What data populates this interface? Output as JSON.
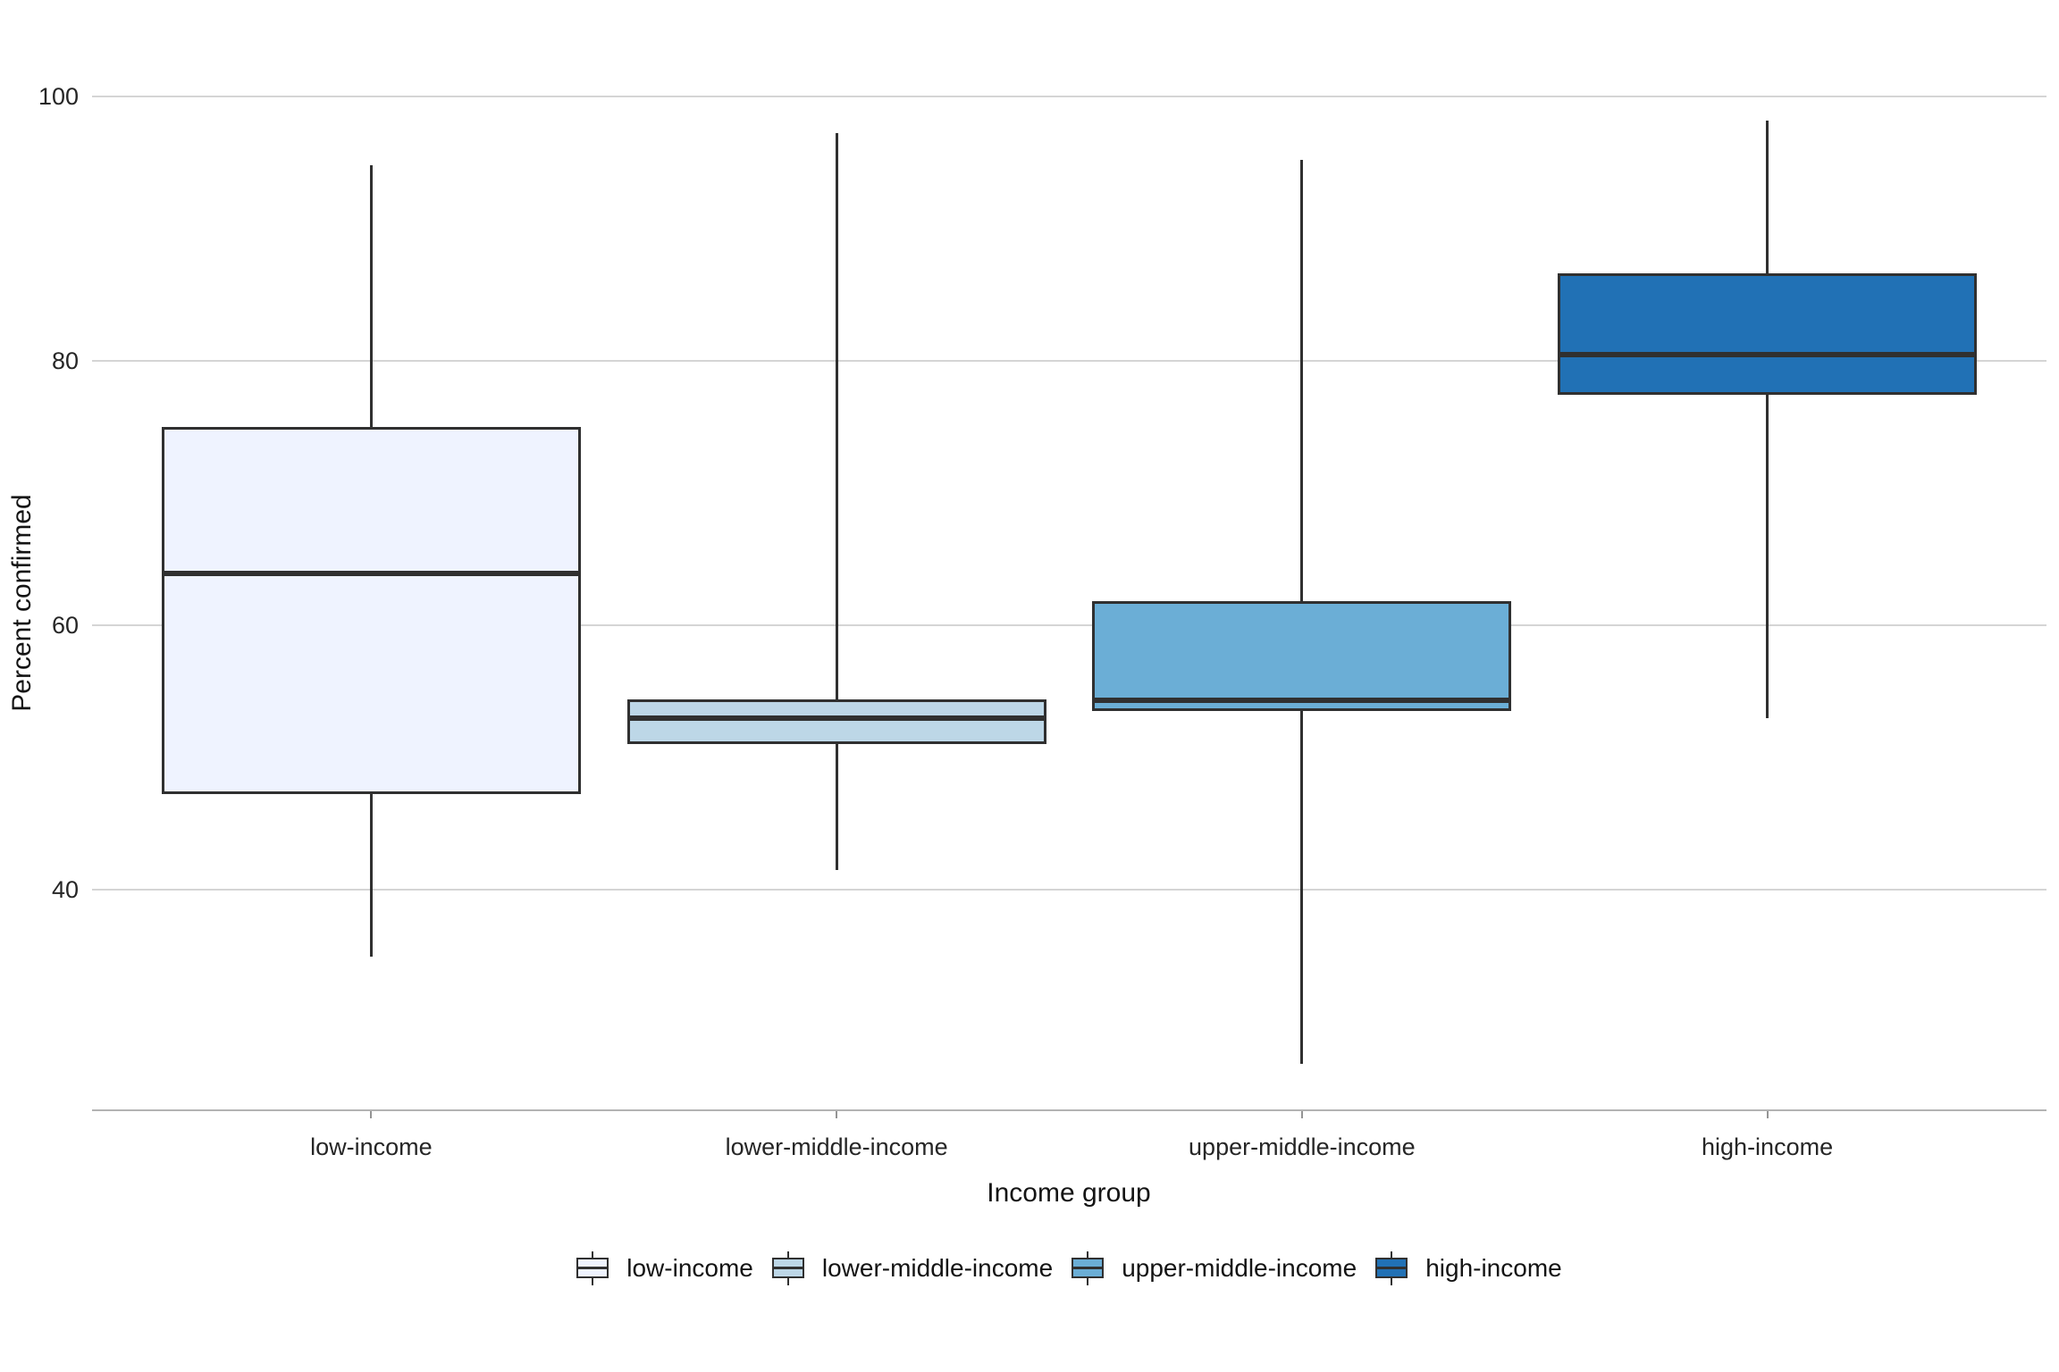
{
  "chart_data": {
    "type": "boxplot",
    "title": "",
    "xlabel": "Income group",
    "ylabel": "Percent confirmed",
    "categories": [
      "low-income",
      "lower-middle-income",
      "upper-middle-income",
      "high-income"
    ],
    "y_ticks": [
      100,
      80,
      60,
      40
    ],
    "y_tick_labels": [
      "100",
      "80",
      "60",
      "40"
    ],
    "ylim": [
      23.3,
      104.3
    ],
    "grid": "horizontal gridlines only, no vertical grid",
    "legend_position": "bottom",
    "series": [
      {
        "name": "low-income",
        "color": "#EFF3FF",
        "whisker_low": 34.9,
        "q1": 47.2,
        "median": 63.9,
        "q3": 75.0,
        "whisker_high": 94.8
      },
      {
        "name": "lower-middle-income",
        "color": "#BDD7E7",
        "whisker_low": 41.5,
        "q1": 51.0,
        "median": 53.0,
        "q3": 54.4,
        "whisker_high": 97.2
      },
      {
        "name": "upper-middle-income",
        "color": "#6BAED6",
        "whisker_low": 26.8,
        "q1": 53.5,
        "median": 54.3,
        "q3": 61.8,
        "whisker_high": 95.2
      },
      {
        "name": "high-income",
        "color": "#2171B5",
        "whisker_low": 53.0,
        "q1": 77.4,
        "median": 80.5,
        "q3": 86.6,
        "whisker_high": 98.2
      }
    ],
    "legend": {
      "items": [
        {
          "label": "low-income",
          "color": "#EFF3FF"
        },
        {
          "label": "lower-middle-income",
          "color": "#BDD7E7"
        },
        {
          "label": "upper-middle-income",
          "color": "#6BAED6"
        },
        {
          "label": "high-income",
          "color": "#2171B5"
        }
      ]
    },
    "style": {
      "box_edge_color": "#303030",
      "median_color": "#303030",
      "whisker_color": "#303030",
      "gridline_color": "#D5D5D5",
      "axis_line_color": "#B3B3B3",
      "tick_mark_color": "#949494",
      "tick_text_color": "#262626",
      "title_text_color": "#141414",
      "background_color": "#FFFFFF"
    }
  }
}
